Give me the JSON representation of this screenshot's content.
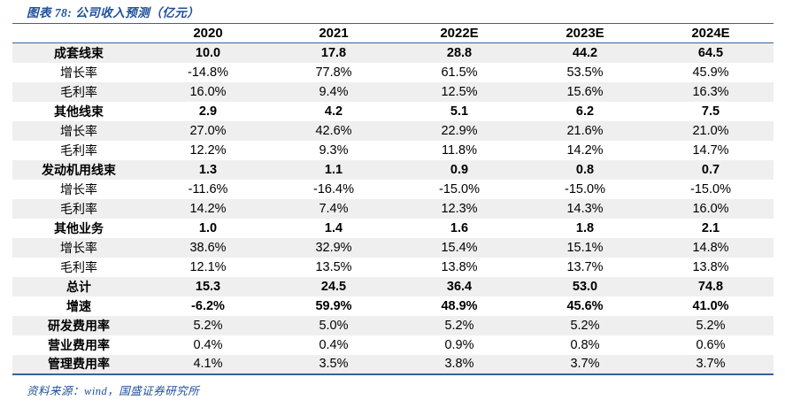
{
  "chart_data": {
    "type": "table",
    "title": "图表 78: 公司收入预测（亿元）",
    "source": "资料来源：wind，国盛证券研究所",
    "header": [
      "",
      "2020",
      "2021",
      "2022E",
      "2023E",
      "2024E"
    ],
    "rows": [
      {
        "label": "成套线束",
        "style": "section",
        "values": [
          "10.0",
          "17.8",
          "28.8",
          "44.2",
          "64.5"
        ]
      },
      {
        "label": "增长率",
        "style": "sub",
        "values": [
          "-14.8%",
          "77.8%",
          "61.5%",
          "53.5%",
          "45.9%"
        ]
      },
      {
        "label": "毛利率",
        "style": "sub",
        "values": [
          "16.0%",
          "9.4%",
          "12.5%",
          "15.6%",
          "16.3%"
        ]
      },
      {
        "label": "其他线束",
        "style": "section",
        "values": [
          "2.9",
          "4.2",
          "5.1",
          "6.2",
          "7.5"
        ]
      },
      {
        "label": "增长率",
        "style": "sub",
        "values": [
          "27.0%",
          "42.6%",
          "22.9%",
          "21.6%",
          "21.0%"
        ]
      },
      {
        "label": "毛利率",
        "style": "sub",
        "values": [
          "12.2%",
          "9.3%",
          "11.8%",
          "14.2%",
          "14.7%"
        ]
      },
      {
        "label": "发动机用线束",
        "style": "section",
        "values": [
          "1.3",
          "1.1",
          "0.9",
          "0.8",
          "0.7"
        ]
      },
      {
        "label": "增长率",
        "style": "sub",
        "values": [
          "-11.6%",
          "-16.4%",
          "-15.0%",
          "-15.0%",
          "-15.0%"
        ]
      },
      {
        "label": "毛利率",
        "style": "sub",
        "values": [
          "14.2%",
          "7.4%",
          "12.3%",
          "14.3%",
          "16.0%"
        ]
      },
      {
        "label": "其他业务",
        "style": "section",
        "values": [
          "1.0",
          "1.4",
          "1.6",
          "1.8",
          "2.1"
        ]
      },
      {
        "label": "增长率",
        "style": "sub",
        "values": [
          "38.6%",
          "32.9%",
          "15.4%",
          "15.1%",
          "14.8%"
        ]
      },
      {
        "label": "毛利率",
        "style": "sub",
        "values": [
          "12.1%",
          "13.5%",
          "13.8%",
          "13.7%",
          "13.8%"
        ]
      },
      {
        "label": "总计",
        "style": "section",
        "values": [
          "15.3",
          "24.5",
          "36.4",
          "53.0",
          "74.8"
        ]
      },
      {
        "label": "增速",
        "style": "section",
        "values": [
          "-6.2%",
          "59.9%",
          "48.9%",
          "45.6%",
          "41.0%"
        ]
      },
      {
        "label": "研发费用率",
        "style": "expense",
        "values": [
          "5.2%",
          "5.0%",
          "5.2%",
          "5.2%",
          "5.2%"
        ]
      },
      {
        "label": "营业费用率",
        "style": "expense",
        "values": [
          "0.4%",
          "0.4%",
          "0.9%",
          "0.8%",
          "0.6%"
        ]
      },
      {
        "label": "管理费用率",
        "style": "expense",
        "values": [
          "4.1%",
          "3.5%",
          "3.8%",
          "3.7%",
          "3.7%"
        ]
      }
    ],
    "layout": {
      "stripe_rows": "odd",
      "grid": "horizontal-rules-only"
    }
  },
  "colors": {
    "accent_blue": "#35639F",
    "title_blue": "#1E4F9B",
    "stripe_gray": "#EFEFEF",
    "text": "#000000",
    "background": "#FFFFFF"
  }
}
